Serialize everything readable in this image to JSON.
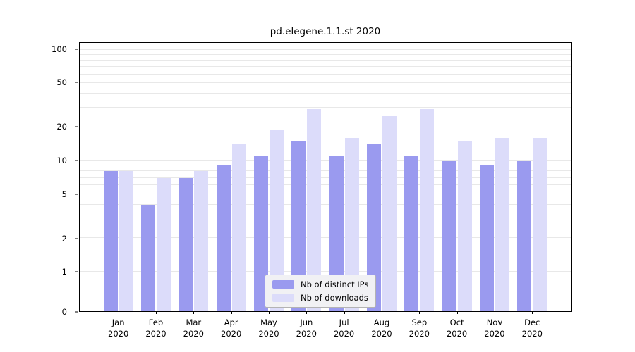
{
  "chart_data": {
    "type": "bar",
    "title": "pd.elegene.1.1.st 2020",
    "months": [
      "Jan",
      "Feb",
      "Mar",
      "Apr",
      "May",
      "Jun",
      "Jul",
      "Aug",
      "Sep",
      "Oct",
      "Nov",
      "Dec"
    ],
    "year": "2020",
    "series": [
      {
        "name": "Nb of distinct IPs",
        "color": "#9a9aef",
        "values": [
          8,
          4,
          7,
          9,
          11,
          15,
          11,
          14,
          11,
          10,
          9,
          10
        ]
      },
      {
        "name": "Nb of downloads",
        "color": "#dcdcfa",
        "values": [
          8,
          7,
          8,
          14,
          19,
          29,
          16,
          25,
          29,
          15,
          16,
          16
        ]
      }
    ],
    "yscale": "symlog",
    "ylim": [
      0,
      115
    ],
    "yticks": [
      0,
      1,
      2,
      5,
      10,
      20,
      50,
      100
    ],
    "gridlines": [
      1,
      2,
      3,
      4,
      5,
      6,
      7,
      8,
      9,
      10,
      20,
      30,
      40,
      50,
      60,
      70,
      80,
      90,
      100
    ],
    "grid_color": "#e8e8e8",
    "axis_color": "#000000",
    "legend": {
      "background": "#f1f1f4",
      "border": "#b3b3b3",
      "position": "lower center"
    }
  }
}
